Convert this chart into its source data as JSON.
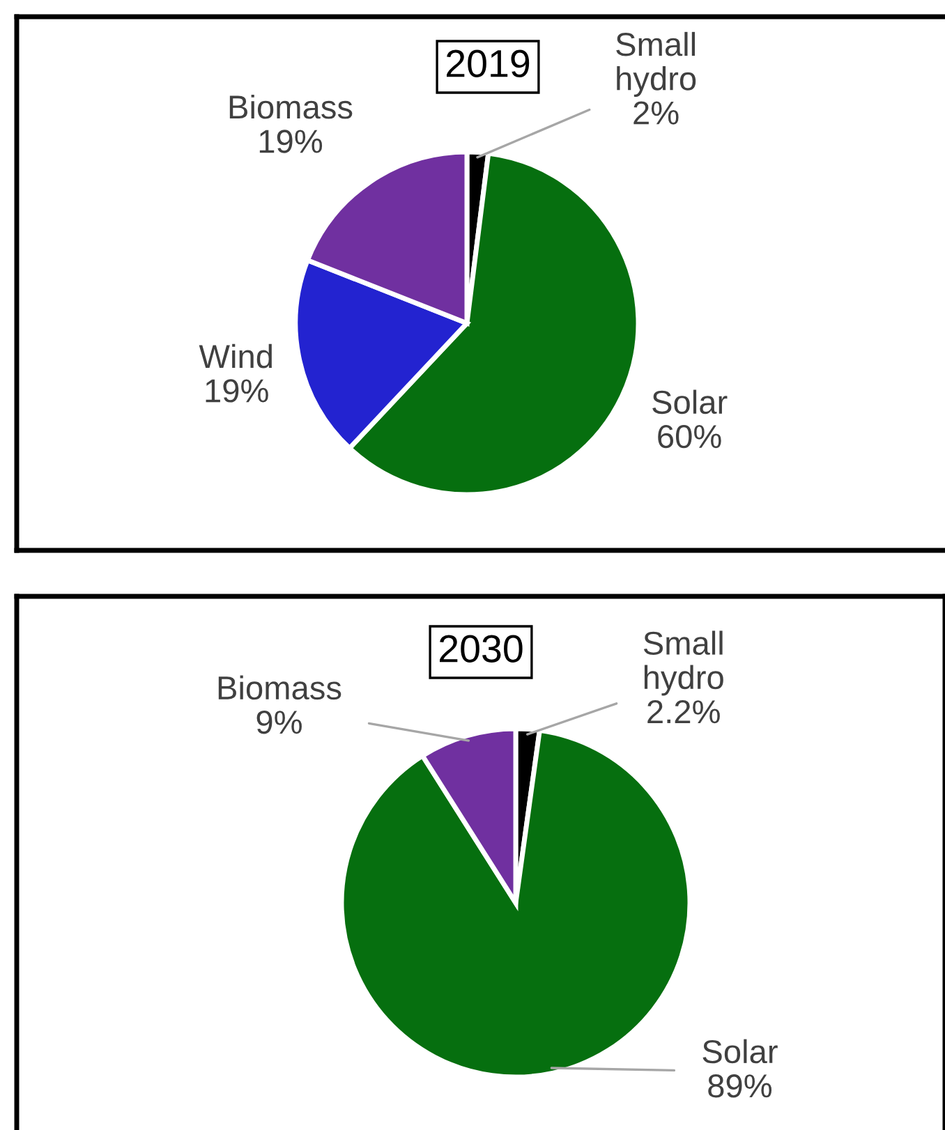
{
  "chart_data": [
    {
      "type": "pie",
      "title": "2019",
      "categories": [
        "Small\nhydro",
        "Solar",
        "Wind",
        "Biomass"
      ],
      "values": [
        2,
        60,
        19,
        19
      ],
      "value_labels": [
        "2%",
        "60%",
        "19%",
        "19%"
      ],
      "colors": [
        "#000000",
        "#066f0f",
        "#2323d0",
        "#7030a0"
      ]
    },
    {
      "type": "pie",
      "title": "2030",
      "categories": [
        "Small\nhydro",
        "Solar",
        "Biomass"
      ],
      "values": [
        2.2,
        89,
        9
      ],
      "value_labels": [
        "2.2%",
        "89%",
        "9%"
      ],
      "colors": [
        "#000000",
        "#066f0f",
        "#7030a0"
      ]
    }
  ]
}
